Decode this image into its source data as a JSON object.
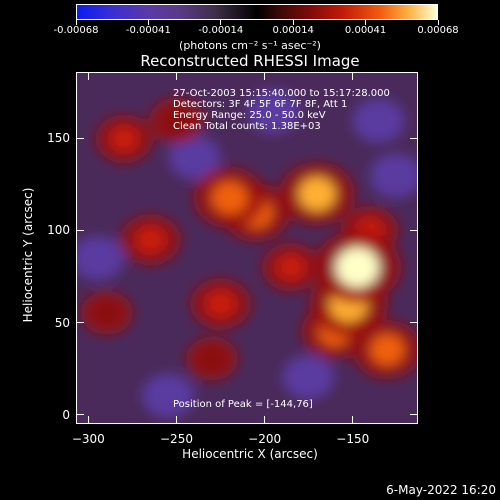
{
  "colorbar": {
    "ticks": [
      "-0.00068",
      "-0.00041",
      "-0.00014",
      "0.00014",
      "0.00041",
      "0.00068"
    ],
    "units": "(photons cm⁻² s⁻¹ asec⁻²)"
  },
  "chart_data": {
    "type": "heatmap",
    "title": "Reconstructed RHESSI Image",
    "xlabel": "Heliocentric X (arcsec)",
    "ylabel": "Heliocentric Y (arcsec)",
    "xlim": [
      -307,
      -113
    ],
    "ylim": [
      -5,
      186
    ],
    "xticks": [
      "−300",
      "−250",
      "−200",
      "−150"
    ],
    "yticks": [
      "0",
      "50",
      "100",
      "150"
    ],
    "xtick_values": [
      -300,
      -250,
      -200,
      -150
    ],
    "ytick_values": [
      0,
      50,
      100,
      150
    ],
    "color_range": [
      -0.00068,
      0.00068
    ],
    "peak": {
      "x": -144,
      "y": 76
    },
    "bright_regions": [
      {
        "x": -147,
        "y": 80,
        "intensity": 1.0
      },
      {
        "x": -152,
        "y": 60,
        "intensity": 0.85
      },
      {
        "x": -170,
        "y": 120,
        "intensity": 0.8
      },
      {
        "x": -220,
        "y": 118,
        "intensity": 0.75
      },
      {
        "x": -205,
        "y": 110,
        "intensity": 0.7
      },
      {
        "x": -130,
        "y": 35,
        "intensity": 0.7
      },
      {
        "x": -160,
        "y": 45,
        "intensity": 0.65
      },
      {
        "x": -265,
        "y": 95,
        "intensity": 0.55
      },
      {
        "x": -280,
        "y": 150,
        "intensity": 0.5
      },
      {
        "x": -225,
        "y": 60,
        "intensity": 0.55
      },
      {
        "x": -140,
        "y": 100,
        "intensity": 0.5
      },
      {
        "x": -250,
        "y": 160,
        "intensity": 0.45
      },
      {
        "x": -185,
        "y": 80,
        "intensity": 0.5
      },
      {
        "x": -230,
        "y": 30,
        "intensity": 0.4
      },
      {
        "x": -290,
        "y": 55,
        "intensity": 0.4
      }
    ],
    "dark_regions": [
      {
        "x": -295,
        "y": 85
      },
      {
        "x": -240,
        "y": 140
      },
      {
        "x": -175,
        "y": 20
      },
      {
        "x": -135,
        "y": 160
      },
      {
        "x": -255,
        "y": 10
      },
      {
        "x": -195,
        "y": 165
      },
      {
        "x": -125,
        "y": 130
      }
    ]
  },
  "info_lines": [
    "27-Oct-2003 15:15:40.000 to 15:17:28.000",
    "Detectors: 3F 4F 5F 6F 7F 8F, Att 1",
    "Energy Range: 25.0 - 50.0 keV",
    "Clean     Total counts: 1.38E+03"
  ],
  "peak_label": "Position of Peak = [-144,76]",
  "footer_date": "6-May-2022 16:20"
}
